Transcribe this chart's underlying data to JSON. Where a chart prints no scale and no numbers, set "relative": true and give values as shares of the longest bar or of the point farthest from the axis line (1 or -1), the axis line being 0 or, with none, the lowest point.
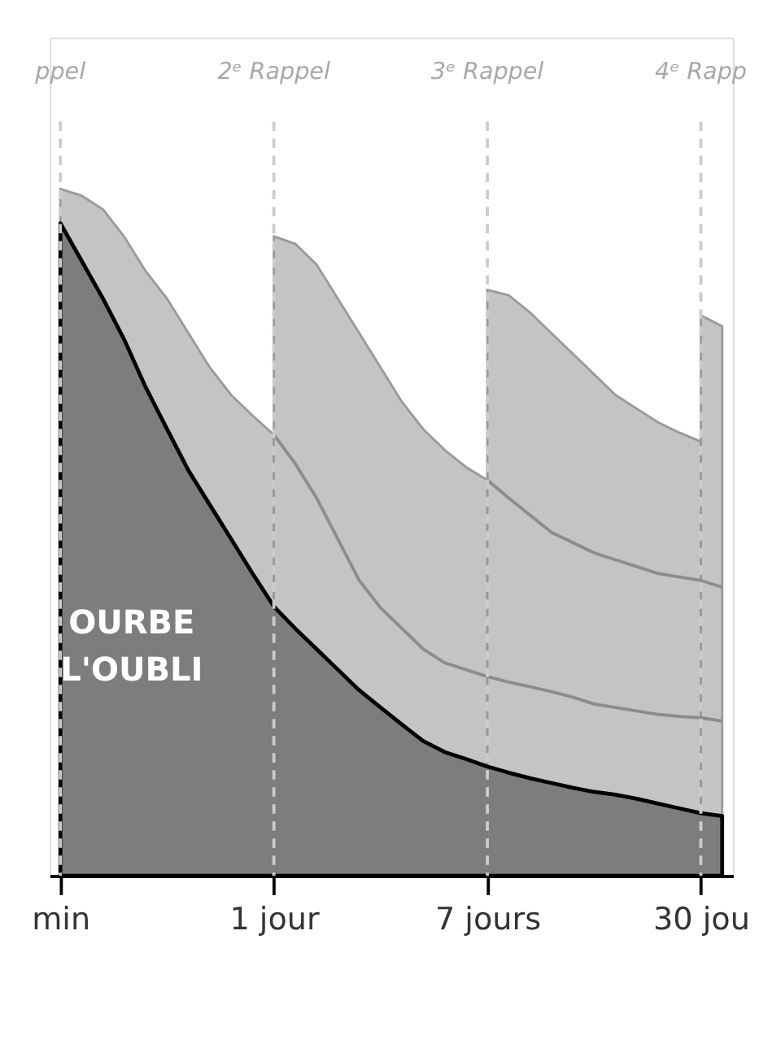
{
  "chart_data": {
    "type": "area",
    "relative": true,
    "tick_labels": "x",
    "grid": false,
    "categories": [
      "min",
      null,
      null,
      null,
      null,
      null,
      null,
      null,
      null,
      null,
      "1 jour",
      null,
      null,
      null,
      null,
      null,
      null,
      null,
      null,
      null,
      "7 jours",
      null,
      null,
      null,
      null,
      null,
      null,
      null,
      null,
      null,
      "30 jou",
      null
    ],
    "series": [
      {
        "color": "#c4c4c4",
        "values": [
          1.0,
          0.99,
          0.97,
          0.93,
          0.88,
          0.84,
          0.79,
          0.74,
          0.7,
          0.67,
          0.642,
          null,
          null,
          null,
          null,
          null,
          null,
          null,
          null,
          null,
          null,
          null,
          null,
          null,
          null,
          null,
          null,
          null,
          null,
          null,
          null,
          null
        ]
      },
      {
        "color": "#c4c4c4",
        "values": [
          null,
          null,
          null,
          null,
          null,
          null,
          null,
          null,
          null,
          null,
          0.931,
          0.92,
          0.89,
          0.84,
          0.79,
          0.74,
          0.69,
          0.65,
          0.62,
          0.595,
          0.576,
          null,
          null,
          null,
          null,
          null,
          null,
          null,
          null,
          null,
          null,
          null
        ]
      },
      {
        "color": "#c4c4c4",
        "values": [
          null,
          null,
          null,
          null,
          null,
          null,
          null,
          null,
          null,
          null,
          null,
          null,
          null,
          null,
          null,
          null,
          null,
          null,
          null,
          null,
          0.853,
          0.845,
          0.82,
          0.79,
          0.76,
          0.73,
          0.7,
          0.68,
          0.66,
          0.645,
          0.632,
          null
        ]
      },
      {
        "color": "#c4c4c4",
        "values": [
          null,
          null,
          null,
          null,
          null,
          null,
          null,
          null,
          null,
          null,
          null,
          null,
          null,
          null,
          null,
          null,
          null,
          null,
          null,
          null,
          null,
          null,
          null,
          null,
          null,
          null,
          null,
          null,
          null,
          null,
          0.816,
          0.8
        ]
      },
      {
        "type": "line",
        "color": "#8c8c8c",
        "values": [
          null,
          null,
          null,
          null,
          null,
          null,
          null,
          null,
          null,
          null,
          0.642,
          0.6,
          0.55,
          0.49,
          0.43,
          0.39,
          0.36,
          0.33,
          0.31,
          0.3,
          0.29,
          0.282,
          0.275,
          0.268,
          0.26,
          0.25,
          0.245,
          0.24,
          0.235,
          0.232,
          0.23,
          0.225
        ]
      },
      {
        "type": "line",
        "color": "#8c8c8c",
        "values": [
          null,
          null,
          null,
          null,
          null,
          null,
          null,
          null,
          null,
          null,
          null,
          null,
          null,
          null,
          null,
          null,
          null,
          null,
          null,
          null,
          0.576,
          0.55,
          0.525,
          0.5,
          0.485,
          0.47,
          0.46,
          0.45,
          0.44,
          0.435,
          0.43,
          0.42
        ]
      },
      {
        "color": "#7d7d7d",
        "values": [
          0.95,
          0.895,
          0.84,
          0.78,
          0.711,
          0.65,
          0.59,
          0.54,
          0.49,
          0.44,
          0.392,
          0.36,
          0.33,
          0.3,
          0.27,
          0.245,
          0.22,
          0.196,
          0.18,
          0.17,
          0.159,
          0.15,
          0.142,
          0.135,
          0.128,
          0.122,
          0.118,
          0.112,
          0.105,
          0.098,
          0.091,
          0.087
        ]
      }
    ],
    "ref_lines": [
      {
        "axis": "x",
        "value": "min",
        "label": "ppel",
        "color": "#cccccc",
        "line_style": "dashed"
      },
      {
        "axis": "x",
        "value": "1 jour",
        "label": "2ᵉ Rappel",
        "color": "#cccccc",
        "line_style": "dashed"
      },
      {
        "axis": "x",
        "value": "7 jours",
        "label": "3ᵉ Rappel",
        "color": "#cccccc",
        "line_style": "dashed"
      },
      {
        "axis": "x",
        "value": "30 jou",
        "label": "4ᵉ Rapp",
        "color": "#cccccc",
        "line_style": "dashed"
      }
    ],
    "annotations": [
      "OURBE\nL'OUBLI"
    ]
  }
}
